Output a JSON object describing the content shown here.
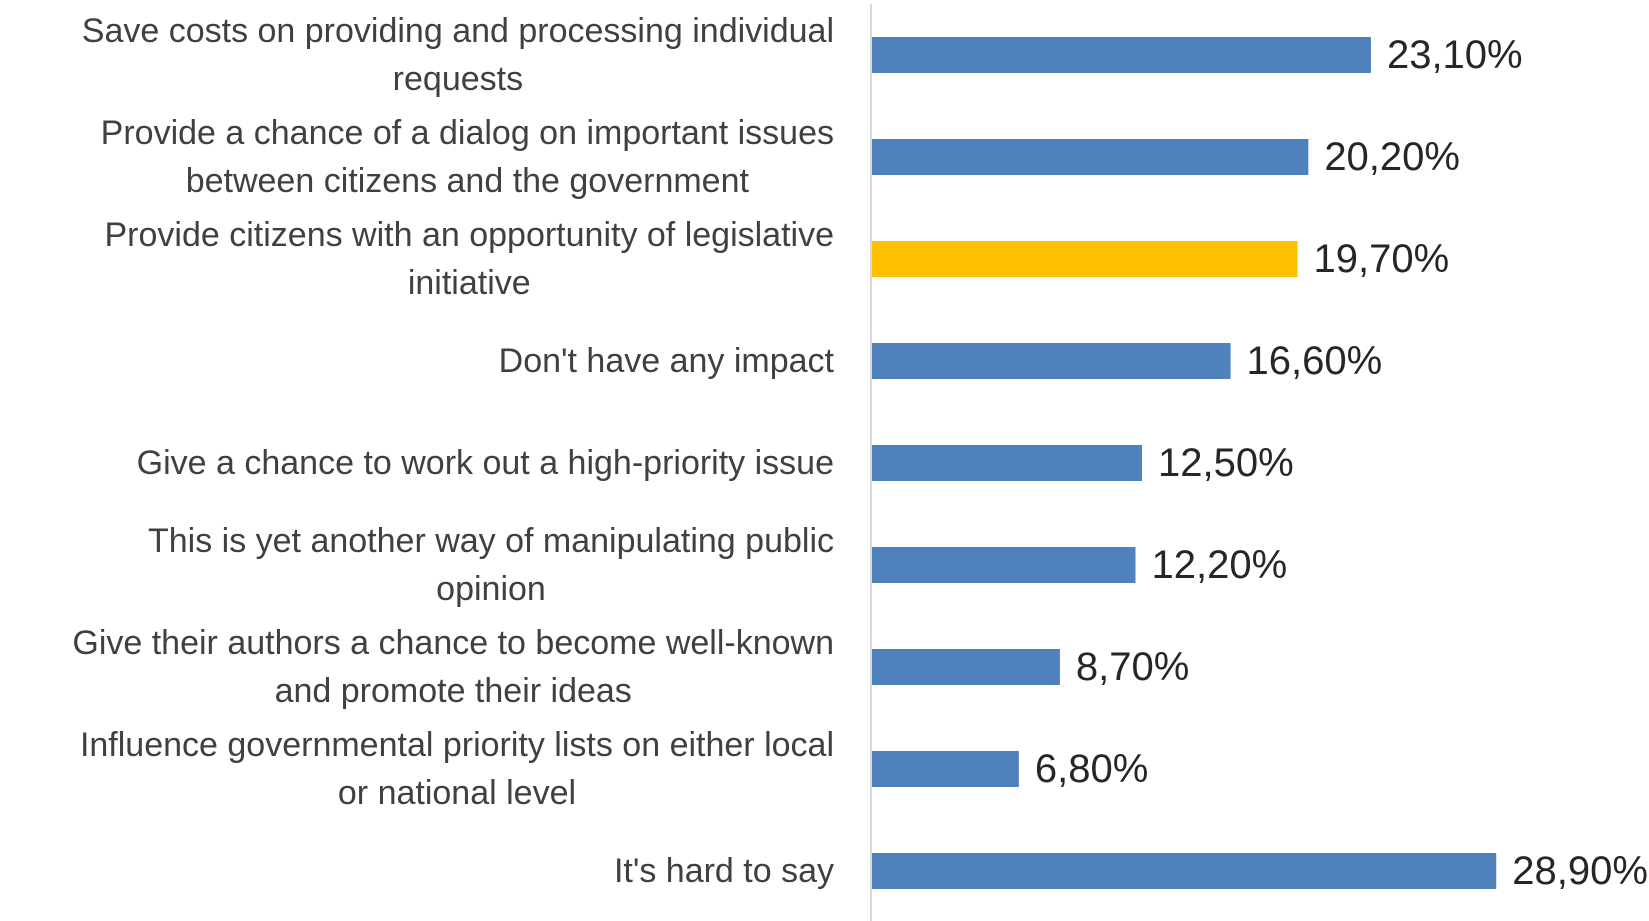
{
  "chart_data": {
    "type": "bar",
    "orientation": "horizontal",
    "categories": [
      [
        "Save costs on providing and processing individual",
        "requests"
      ],
      [
        "Provide a chance of a dialog on important issues",
        "between citizens and the government"
      ],
      [
        "Provide citizens with an opportunity of legislative",
        "initiative"
      ],
      [
        "Don't have any impact"
      ],
      [
        "Give a chance to work out a high-priority issue"
      ],
      [
        "This is yet another way of manipulating public",
        "opinion"
      ],
      [
        "Give their authors a chance to become well-known",
        "and promote their ideas"
      ],
      [
        "Influence governmental priority lists on either local",
        "or national level"
      ],
      [
        "It's hard to say"
      ]
    ],
    "values": [
      23.1,
      20.2,
      19.7,
      16.6,
      12.5,
      12.2,
      8.7,
      6.8,
      28.9
    ],
    "value_labels": [
      "23,10%",
      "20,20%",
      "19,70%",
      "16,60%",
      "12,50%",
      "12,20%",
      "8,70%",
      "6,80%",
      "28,90%"
    ],
    "bar_colors": [
      "#4f81bd",
      "#4f81bd",
      "#ffc000",
      "#4f81bd",
      "#4f81bd",
      "#4f81bd",
      "#4f81bd",
      "#4f81bd",
      "#4f81bd"
    ],
    "axis_line_color": "#d9d9d9",
    "xlim": [
      0,
      30
    ],
    "grid": false,
    "legend": false
  }
}
